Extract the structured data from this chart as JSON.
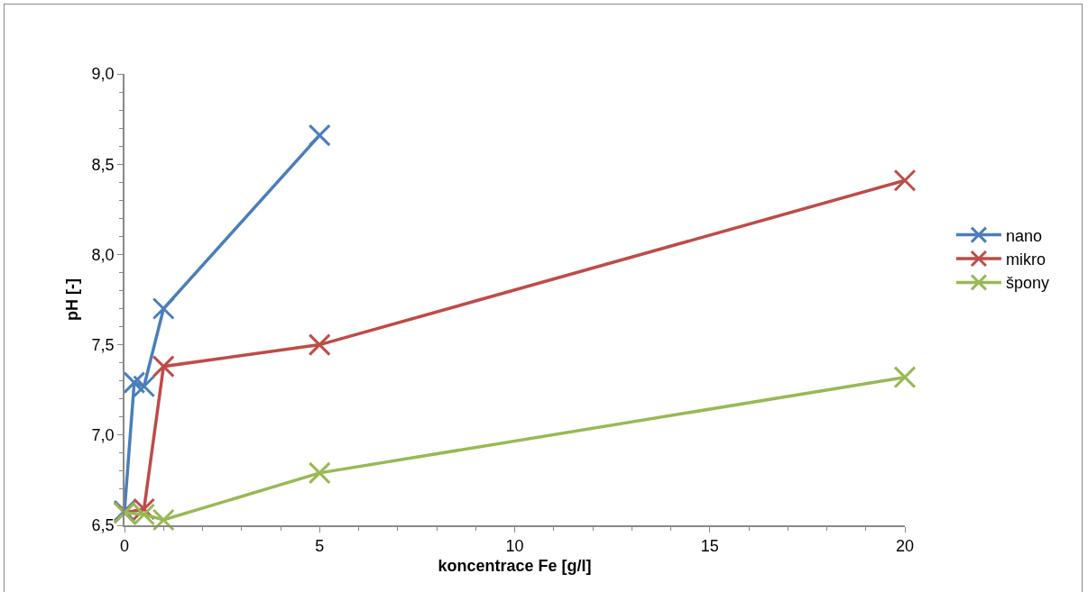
{
  "chart_data": {
    "type": "line",
    "xlabel": "koncentrace Fe [g/l]",
    "ylabel": "pH [-]",
    "xlim": [
      0,
      20
    ],
    "xticks": [
      0,
      5,
      10,
      15,
      20
    ],
    "ylim": [
      6.5,
      9.0
    ],
    "yticks": [
      {
        "value": 6.5,
        "label": "6,5"
      },
      {
        "value": 7.0,
        "label": "7,0"
      },
      {
        "value": 7.5,
        "label": "7,5"
      },
      {
        "value": 8.0,
        "label": "8,0"
      },
      {
        "value": 8.5,
        "label": "8,5"
      },
      {
        "value": 9.0,
        "label": "9,0"
      }
    ],
    "grid": false,
    "legend": "right",
    "marker": "cross",
    "line_style": "solid",
    "series": [
      {
        "name": "nano",
        "color": "#4a7ebb",
        "x": [
          0,
          0.25,
          0.5,
          1,
          5
        ],
        "values": [
          6.58,
          7.29,
          7.27,
          7.7,
          8.66
        ]
      },
      {
        "name": "mikro",
        "color": "#be4b48",
        "x": [
          0,
          0.5,
          1,
          5,
          20
        ],
        "values": [
          6.57,
          6.59,
          7.38,
          7.5,
          8.41
        ]
      },
      {
        "name": "špony",
        "color": "#98b954",
        "x": [
          0,
          0.5,
          1,
          5,
          20
        ],
        "values": [
          6.57,
          6.56,
          6.53,
          6.79,
          7.32
        ]
      }
    ]
  }
}
